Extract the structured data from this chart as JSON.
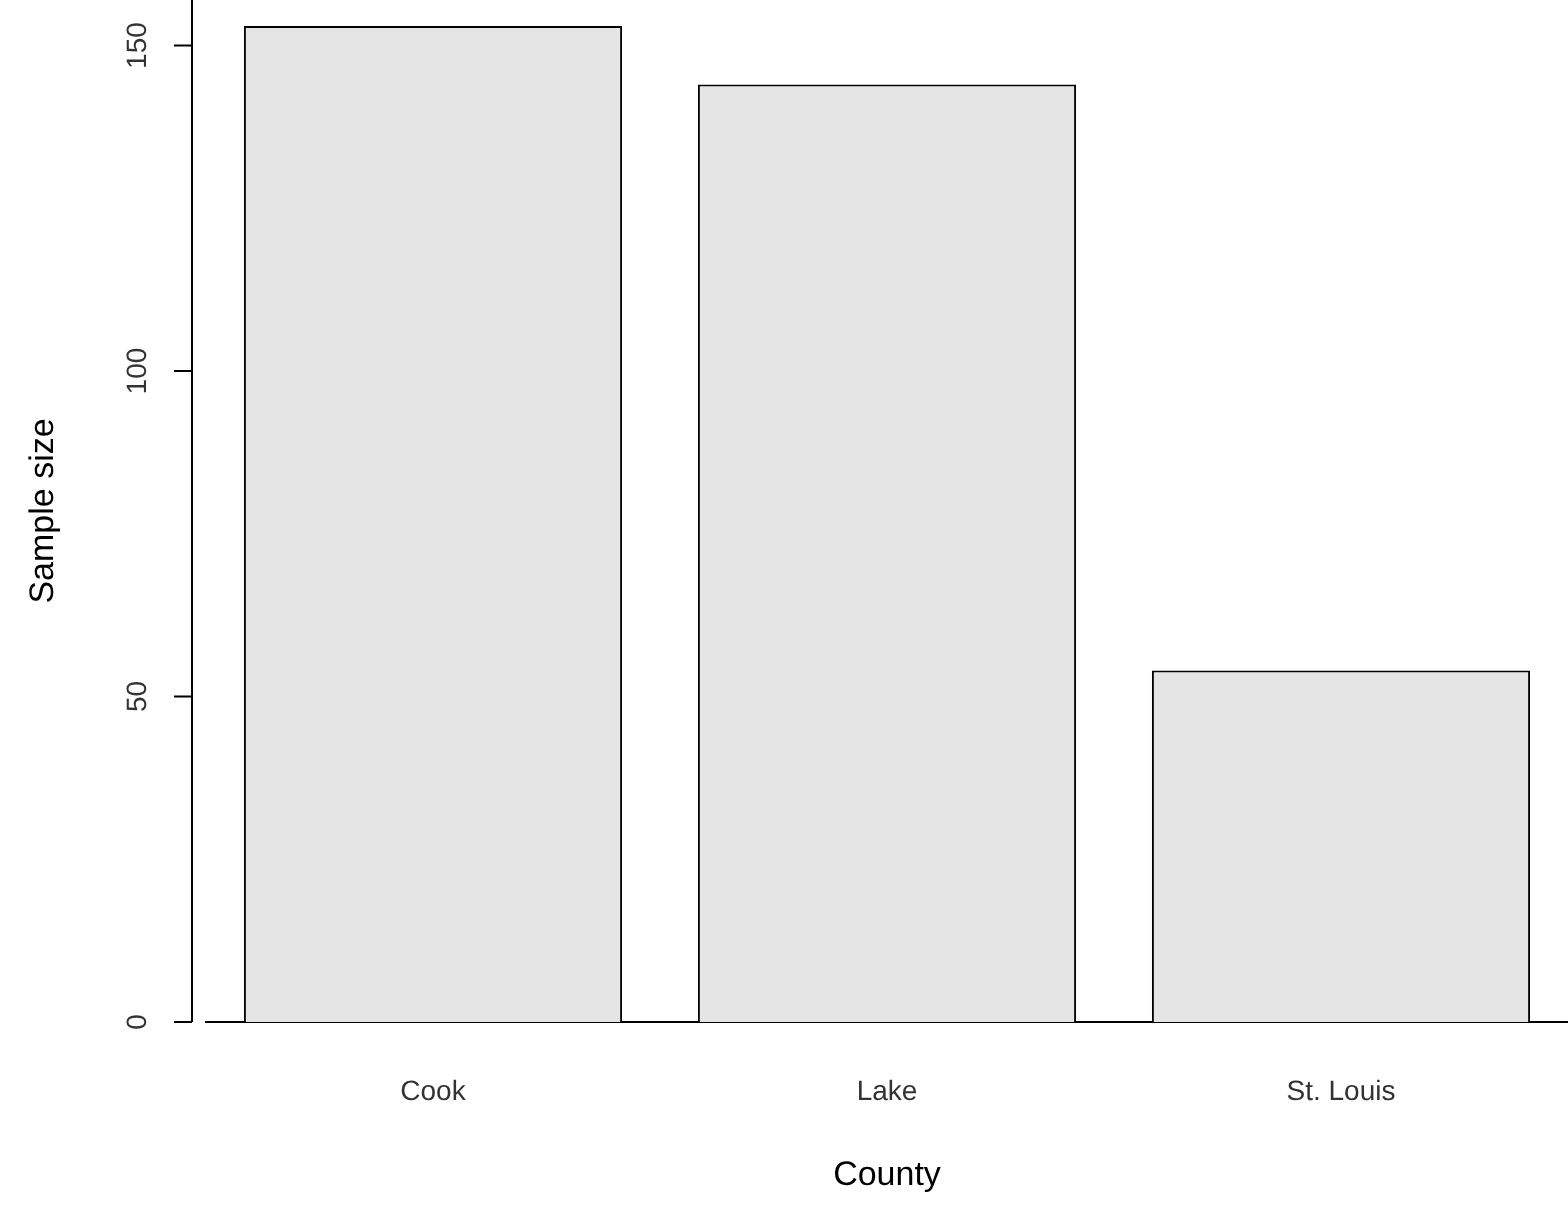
{
  "chart_data": {
    "type": "bar",
    "xlabel": "County",
    "ylabel": "Sample size",
    "categories": [
      "Cook",
      "Lake",
      "St. Louis"
    ],
    "values": [
      153,
      144,
      54
    ],
    "color": "#e5e5e5",
    "ylim": [
      0,
      157
    ],
    "yticks": [
      0,
      50,
      100,
      150
    ],
    "grid": false,
    "legend": false
  }
}
